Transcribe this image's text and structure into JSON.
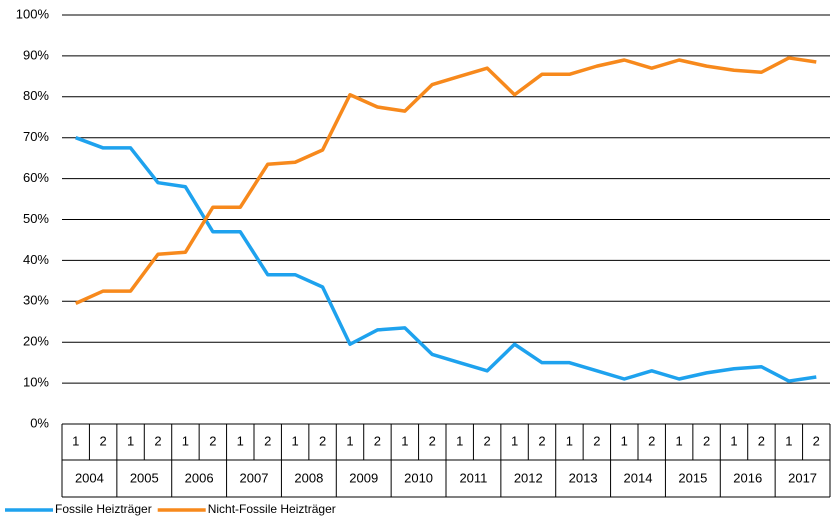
{
  "chart_data": {
    "type": "line",
    "categories": [
      "1",
      "2",
      "1",
      "2",
      "1",
      "2",
      "1",
      "2",
      "1",
      "2",
      "1",
      "2",
      "1",
      "2",
      "1",
      "2",
      "1",
      "2",
      "1",
      "2",
      "1",
      "2",
      "1",
      "2",
      "1",
      "2",
      "1",
      "2"
    ],
    "category_groups": [
      "2004",
      "2005",
      "2006",
      "2007",
      "2008",
      "2009",
      "2010",
      "2011",
      "2012",
      "2013",
      "2014",
      "2015",
      "2016",
      "2017"
    ],
    "series": [
      {
        "name": "Fossile Heizträger",
        "color": "#1ea2ee",
        "values": [
          70,
          67.5,
          67.5,
          59,
          58,
          47,
          47,
          36.5,
          36.5,
          33.5,
          19.5,
          23,
          23.5,
          17,
          15,
          13,
          19.5,
          15,
          15,
          13,
          11,
          13,
          11,
          12.5,
          13.5,
          14,
          10.5,
          11.5
        ]
      },
      {
        "name": "Nicht-Fossile Heizträger",
        "color": "#f7891c",
        "values": [
          29.5,
          32.5,
          32.5,
          41.5,
          42,
          53,
          53,
          63.5,
          64,
          67,
          80.5,
          77.5,
          76.5,
          83,
          85,
          87,
          80.5,
          85.5,
          85.5,
          87.5,
          89,
          87,
          89,
          87.5,
          86.5,
          86,
          89.5,
          88.5
        ]
      }
    ],
    "ylim": [
      0,
      100
    ],
    "yticks": [
      {
        "value": 0,
        "label": "0%"
      },
      {
        "value": 10,
        "label": "10%"
      },
      {
        "value": 20,
        "label": "20%"
      },
      {
        "value": 30,
        "label": "30%"
      },
      {
        "value": 40,
        "label": "40%"
      },
      {
        "value": 50,
        "label": "50%"
      },
      {
        "value": 60,
        "label": "60%"
      },
      {
        "value": 70,
        "label": "70%"
      },
      {
        "value": 80,
        "label": "80%"
      },
      {
        "value": 90,
        "label": "90%"
      },
      {
        "value": 100,
        "label": "100%"
      }
    ],
    "grid": true,
    "legend": "bottom-left"
  }
}
